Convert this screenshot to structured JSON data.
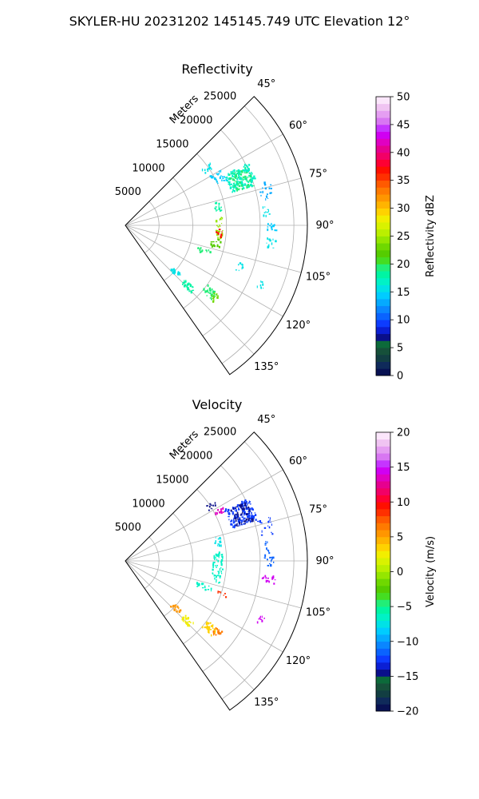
{
  "figure": {
    "title": "SKYLER-HU  20231202  145145.749 UTC Elevation 12°"
  },
  "chart_data": [
    {
      "type": "ppi-sector",
      "title": "Reflectivity",
      "radial_label": "Meters",
      "radial_ticks": [
        5000,
        10000,
        15000,
        20000,
        25000
      ],
      "radial_tick_labels": [
        "5000",
        "10000",
        "15000",
        "20000",
        "25000"
      ],
      "rlim": [
        0,
        27000
      ],
      "azimuth_range_deg": [
        45,
        145
      ],
      "azimuth_ticks": [
        45,
        60,
        75,
        90,
        105,
        120,
        135
      ],
      "azimuth_tick_labels": [
        "45°",
        "60°",
        "75°",
        "90°",
        "105°",
        "120°",
        "135°"
      ],
      "grid": true,
      "colorbar": {
        "label": "Reflectivity dBZ",
        "range": [
          0,
          50
        ],
        "ticks": [
          0,
          5,
          10,
          15,
          20,
          25,
          30,
          35,
          40,
          45,
          50
        ],
        "tick_labels": [
          "0",
          "5",
          "10",
          "15",
          "20",
          "25",
          "30",
          "35",
          "40",
          "45",
          "50"
        ],
        "steps": [
          "#081152",
          "#0f2a5a",
          "#123e42",
          "#16503a",
          "#0c6a3a",
          "#0a0f8a",
          "#0b1fd4",
          "#0d3cff",
          "#0a63ff",
          "#0a86ff",
          "#05aaff",
          "#00ccff",
          "#00e2e6",
          "#00f2c6",
          "#00f5a3",
          "#22ee77",
          "#45dd22",
          "#55cc00",
          "#6fd800",
          "#95e600",
          "#bbef00",
          "#d9f200",
          "#f2ee00",
          "#ffd200",
          "#ffb400",
          "#ff9600",
          "#ff7a00",
          "#ff5a00",
          "#ff3000",
          "#ff0f00",
          "#ff0033",
          "#f20066",
          "#e6008f",
          "#e000c2",
          "#d000f2",
          "#c535ff",
          "#d877f2",
          "#e59ef2",
          "#f0c4f2",
          "#fbe6fb"
        ]
      },
      "echoes": [
        {
          "az_range": [
            63,
            73
          ],
          "r_range": [
            16500,
            20500
          ],
          "value": 17,
          "density": 0.85
        },
        {
          "az_range": [
            64,
            73
          ],
          "r_range": [
            17000,
            20000
          ],
          "value": 19,
          "density": 0.55
        },
        {
          "az_range": [
            60,
            66
          ],
          "r_range": [
            14500,
            16500
          ],
          "value": 14,
          "density": 0.35
        },
        {
          "az_range": [
            54,
            57
          ],
          "r_range": [
            14000,
            16000
          ],
          "value": 15,
          "density": 0.2
        },
        {
          "az_range": [
            73,
            80
          ],
          "r_range": [
            20500,
            22500
          ],
          "value": 13,
          "density": 0.2
        },
        {
          "az_range": [
            82,
            88
          ],
          "r_range": [
            20500,
            21500
          ],
          "value": 15,
          "density": 0.15
        },
        {
          "az_range": [
            89,
            92
          ],
          "r_range": [
            21000,
            22500
          ],
          "value": 14,
          "density": 0.4
        },
        {
          "az_range": [
            95,
            99
          ],
          "r_range": [
            21000,
            22500
          ],
          "value": 16,
          "density": 0.3
        },
        {
          "az_range": [
            75,
            82
          ],
          "r_range": [
            13500,
            14500
          ],
          "value": 18,
          "density": 0.3
        },
        {
          "az_range": [
            85,
            98
          ],
          "r_range": [
            13500,
            14500
          ],
          "value": 24,
          "density": 0.45
        },
        {
          "az_range": [
            98,
            104
          ],
          "r_range": [
            13000,
            14500
          ],
          "value": 22,
          "density": 0.3
        },
        {
          "az_range": [
            92,
            97
          ],
          "r_range": [
            13500,
            14500
          ],
          "value": 37,
          "density": 0.15
        },
        {
          "az_range": [
            106,
            110
          ],
          "r_range": [
            11000,
            13500
          ],
          "value": 19,
          "density": 0.3
        },
        {
          "az_range": [
            131,
            135
          ],
          "r_range": [
            9500,
            11000
          ],
          "value": 15,
          "density": 0.6
        },
        {
          "az_range": [
            132,
            136
          ],
          "r_range": [
            12000,
            14000
          ],
          "value": 18,
          "density": 0.65
        },
        {
          "az_range": [
            126,
            131
          ],
          "r_range": [
            15000,
            17000
          ],
          "value": 19,
          "density": 0.75
        },
        {
          "az_range": [
            127,
            131
          ],
          "r_range": [
            16500,
            17500
          ],
          "value": 23,
          "density": 0.4
        },
        {
          "az_range": [
            108,
            112
          ],
          "r_range": [
            17500,
            18500
          ],
          "value": 15,
          "density": 0.2
        },
        {
          "az_range": [
            112,
            115
          ],
          "r_range": [
            21500,
            22500
          ],
          "value": 15,
          "density": 0.2
        }
      ]
    },
    {
      "type": "ppi-sector",
      "title": "Velocity",
      "radial_label": "Meters",
      "radial_ticks": [
        5000,
        10000,
        15000,
        20000,
        25000
      ],
      "radial_tick_labels": [
        "5000",
        "10000",
        "15000",
        "20000",
        "25000"
      ],
      "rlim": [
        0,
        27000
      ],
      "azimuth_range_deg": [
        45,
        145
      ],
      "azimuth_ticks": [
        45,
        60,
        75,
        90,
        105,
        120,
        135
      ],
      "azimuth_tick_labels": [
        "45°",
        "60°",
        "75°",
        "90°",
        "105°",
        "120°",
        "135°"
      ],
      "grid": true,
      "colorbar": {
        "label": "Velocity (m/s)",
        "range": [
          -20,
          20
        ],
        "ticks": [
          -20,
          -15,
          -10,
          -5,
          0,
          5,
          10,
          15,
          20
        ],
        "tick_labels": [
          "−20",
          "−15",
          "−10",
          "−5",
          "0",
          "5",
          "10",
          "15",
          "20"
        ],
        "steps": [
          "#081152",
          "#0f2a5a",
          "#123e42",
          "#16503a",
          "#0c6a3a",
          "#0a0f8a",
          "#0b1fd4",
          "#0d3cff",
          "#0a63ff",
          "#0a86ff",
          "#05aaff",
          "#00ccff",
          "#00e2e6",
          "#00f2c6",
          "#00f5a3",
          "#22ee77",
          "#45dd22",
          "#55cc00",
          "#6fd800",
          "#95e600",
          "#bbef00",
          "#d9f200",
          "#f2ee00",
          "#ffd200",
          "#ffb400",
          "#ff9600",
          "#ff7a00",
          "#ff5a00",
          "#ff3000",
          "#ff0f00",
          "#ff0033",
          "#f20066",
          "#e6008f",
          "#e000c2",
          "#d000f2",
          "#c535ff",
          "#d877f2",
          "#e59ef2",
          "#f0c4f2",
          "#fbe6fb"
        ]
      },
      "echoes": [
        {
          "az_range": [
            63,
            73
          ],
          "r_range": [
            16500,
            20500
          ],
          "value": -13,
          "density": 0.85
        },
        {
          "az_range": [
            64,
            73
          ],
          "r_range": [
            17000,
            20000
          ],
          "value": -15,
          "density": 0.45
        },
        {
          "az_range": [
            61,
            64
          ],
          "r_range": [
            15000,
            16500
          ],
          "value": 13,
          "density": 0.35
        },
        {
          "az_range": [
            56,
            59
          ],
          "r_range": [
            14500,
            16000
          ],
          "value": -15,
          "density": 0.3
        },
        {
          "az_range": [
            82,
            88
          ],
          "r_range": [
            20500,
            21500
          ],
          "value": -12,
          "density": 0.15
        },
        {
          "az_range": [
            88,
            92
          ],
          "r_range": [
            20500,
            22000
          ],
          "value": -12,
          "density": 0.35
        },
        {
          "az_range": [
            95,
            99
          ],
          "r_range": [
            20500,
            22500
          ],
          "value": 14,
          "density": 0.3
        },
        {
          "az_range": [
            73,
            80
          ],
          "r_range": [
            20500,
            22500
          ],
          "value": -13,
          "density": 0.2
        },
        {
          "az_range": [
            75,
            82
          ],
          "r_range": [
            13500,
            14500
          ],
          "value": -8,
          "density": 0.3
        },
        {
          "az_range": [
            85,
            104
          ],
          "r_range": [
            13000,
            14500
          ],
          "value": -7,
          "density": 0.45
        },
        {
          "az_range": [
            106,
            110
          ],
          "r_range": [
            11000,
            13500
          ],
          "value": -7,
          "density": 0.3
        },
        {
          "az_range": [
            131,
            135
          ],
          "r_range": [
            9500,
            11000
          ],
          "value": 5,
          "density": 0.55
        },
        {
          "az_range": [
            132,
            136
          ],
          "r_range": [
            12000,
            14000
          ],
          "value": 2,
          "density": 0.6
        },
        {
          "az_range": [
            126,
            131
          ],
          "r_range": [
            15000,
            17000
          ],
          "value": 3,
          "density": 0.7
        },
        {
          "az_range": [
            126,
            130
          ],
          "r_range": [
            16500,
            18000
          ],
          "value": 6,
          "density": 0.5
        },
        {
          "az_range": [
            112,
            115
          ],
          "r_range": [
            21500,
            22500
          ],
          "value": 14,
          "density": 0.2
        },
        {
          "az_range": [
            108,
            110
          ],
          "r_range": [
            14500,
            16000
          ],
          "value": 8,
          "density": 0.2
        }
      ]
    }
  ]
}
